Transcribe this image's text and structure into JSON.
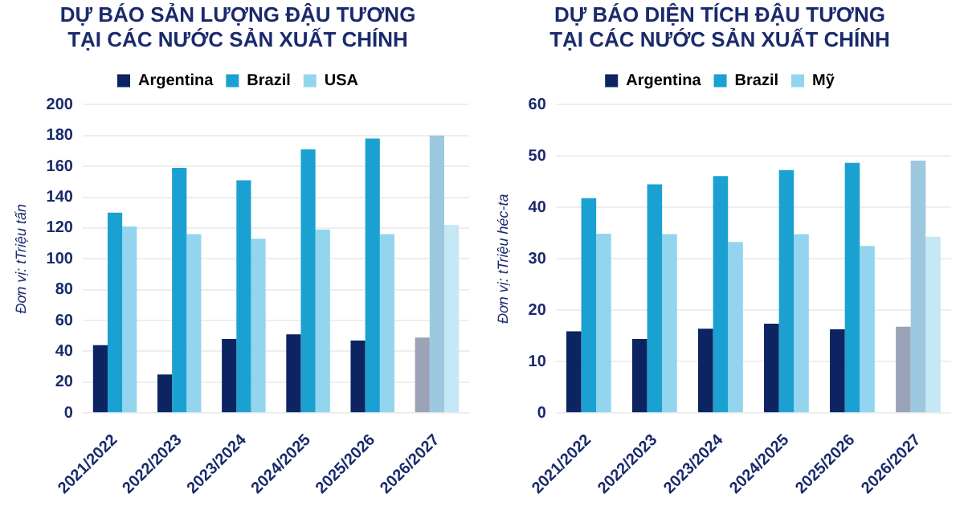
{
  "chart_data": [
    {
      "type": "bar",
      "title": "DỰ BÁO SẢN LƯỢNG ĐẬU TƯƠNG\nTẠI CÁC NƯỚC SẢN XUẤT CHÍNH",
      "ylabel": "Đơn vị: tTriệu tấn",
      "categories": [
        "2021/2022",
        "2022/2023",
        "2023/2024",
        "2024/2025",
        "2025/2026",
        "2026/2027"
      ],
      "series": [
        {
          "name": "Argentina",
          "color": "#0c2461",
          "colors": [
            "#0c2461",
            "#0c2461",
            "#0c2461",
            "#0c2461",
            "#0c2461",
            "#9aa3b8"
          ],
          "values": [
            44,
            25,
            48,
            51,
            47,
            49
          ]
        },
        {
          "name": "Brazil",
          "color": "#1ba1d1",
          "colors": [
            "#1ba1d1",
            "#1ba1d1",
            "#1ba1d1",
            "#1ba1d1",
            "#1ba1d1",
            "#9cc8e0"
          ],
          "values": [
            130,
            159,
            151,
            171,
            178,
            180
          ]
        },
        {
          "name": "USA",
          "color": "#93d5ef",
          "colors": [
            "#93d5ef",
            "#93d5ef",
            "#93d5ef",
            "#93d5ef",
            "#93d5ef",
            "#c5e8f6"
          ],
          "values": [
            121,
            116,
            113,
            119,
            116,
            122
          ]
        }
      ],
      "ylim": [
        0,
        200
      ],
      "yticks": [
        0,
        20,
        40,
        60,
        80,
        100,
        120,
        140,
        160,
        180,
        200
      ],
      "grid": "y",
      "legend": "top"
    },
    {
      "type": "bar",
      "title": "DỰ BÁO DIỆN TÍCH ĐẬU TƯƠNG\nTẠI CÁC NƯỚC SẢN XUẤT CHÍNH",
      "ylabel": "Đơn vị: tTriệu héc-ta",
      "categories": [
        "2021/2022",
        "2022/2023",
        "2023/2024",
        "2024/2025",
        "2025/2026",
        "2026/2027"
      ],
      "series": [
        {
          "name": "Argentina",
          "color": "#0c2461",
          "colors": [
            "#0c2461",
            "#0c2461",
            "#0c2461",
            "#0c2461",
            "#0c2461",
            "#9aa3b8"
          ],
          "values": [
            15.9,
            14.4,
            16.4,
            17.4,
            16.3,
            16.8
          ]
        },
        {
          "name": "Brazil",
          "color": "#1ba1d1",
          "colors": [
            "#1ba1d1",
            "#1ba1d1",
            "#1ba1d1",
            "#1ba1d1",
            "#1ba1d1",
            "#9cc8e0"
          ],
          "values": [
            41.8,
            44.5,
            46.1,
            47.3,
            48.7,
            49.1
          ]
        },
        {
          "name": "Mỹ",
          "color": "#93d5ef",
          "colors": [
            "#93d5ef",
            "#93d5ef",
            "#93d5ef",
            "#93d5ef",
            "#93d5ef",
            "#c5e8f6"
          ],
          "values": [
            34.9,
            34.8,
            33.3,
            34.8,
            32.5,
            34.3
          ]
        }
      ],
      "ylim": [
        0,
        60
      ],
      "yticks": [
        0,
        10,
        20,
        30,
        40,
        50,
        60
      ],
      "grid": "y",
      "legend": "top"
    }
  ]
}
